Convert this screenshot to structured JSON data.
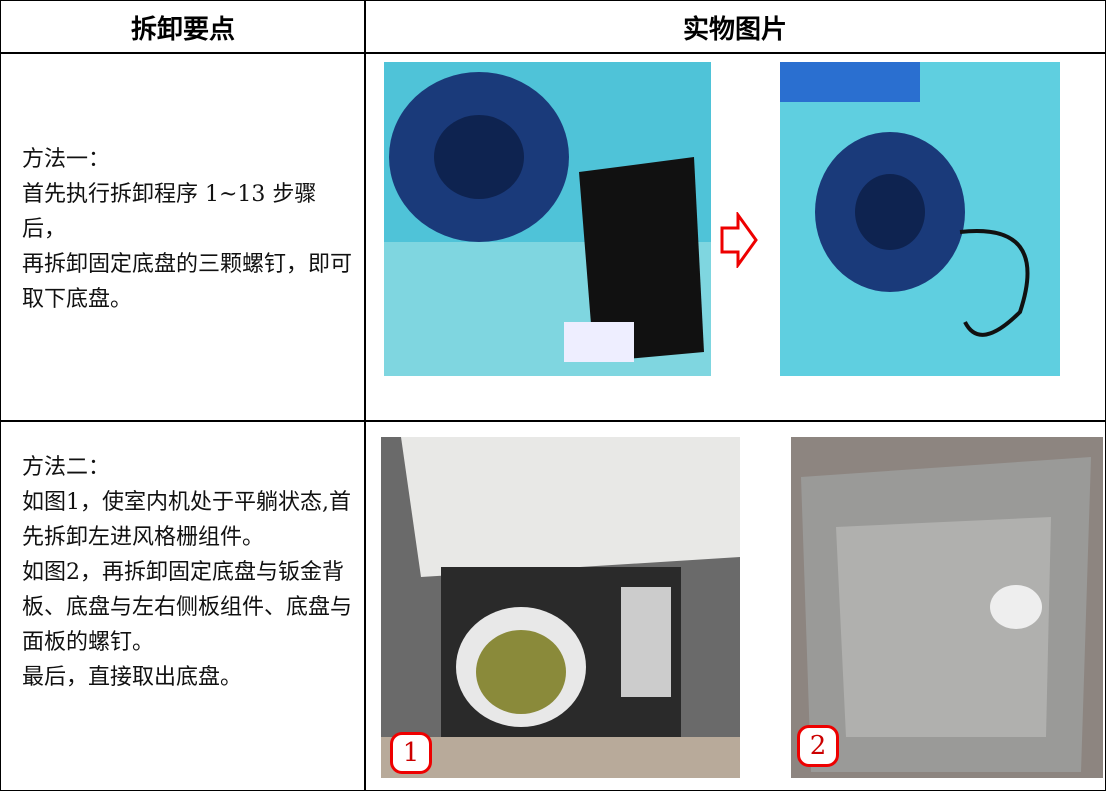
{
  "header": {
    "col1": "拆卸要点",
    "col2": "实物图片"
  },
  "rows": [
    {
      "paragraphs": [
        "方法一：",
        "首先执行拆卸程序 1~13 步骤后，",
        "再拆卸固定底盘的三颗螺钉，即可取下底盘。"
      ]
    },
    {
      "paragraphs": [
        "方法二：",
        "如图1，使室内机处于平躺状态,首先拆卸左进风格栅组件。",
        "如图2，再拆卸固定底盘与钣金背板、底盘与左右侧板组件、底盘与面板的螺钉。",
        "最后，直接取出底盘。"
      ],
      "figure_labels": [
        "1",
        "2"
      ]
    }
  ]
}
